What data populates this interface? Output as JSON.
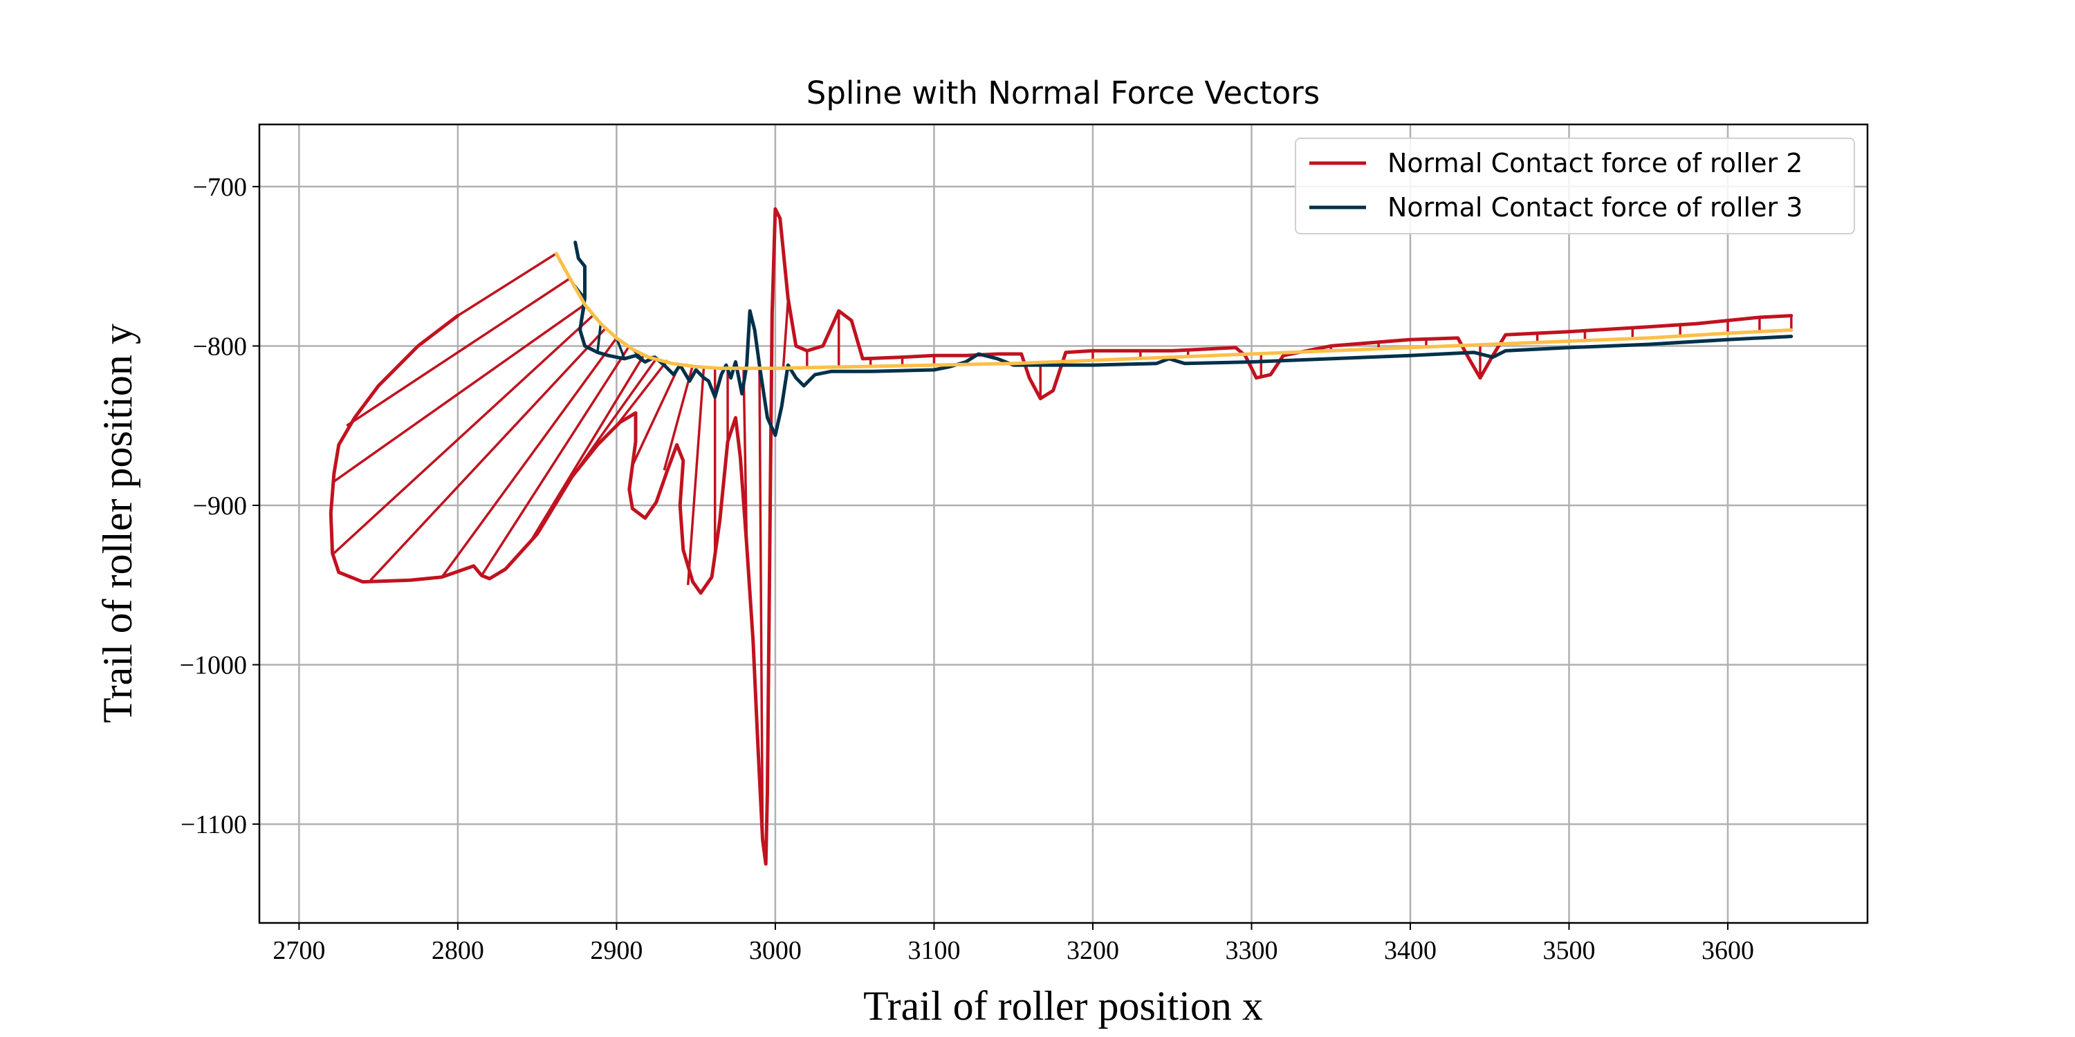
{
  "chart_data": {
    "type": "line",
    "title": "Spline with Normal Force Vectors",
    "xlabel": "Trail of roller position x",
    "ylabel": "Trail of roller position y",
    "xlim": [
      2675,
      3688
    ],
    "ylim": [
      -1162,
      -661
    ],
    "xticks": [
      2700,
      2800,
      2900,
      3000,
      3100,
      3200,
      3300,
      3400,
      3500,
      3600
    ],
    "yticks": [
      -700,
      -800,
      -900,
      -1000,
      -1100
    ],
    "grid": true,
    "legend": {
      "placement": "top-right"
    },
    "colors": {
      "roller2": "#c1121f",
      "roller3": "#003049",
      "spline": "#fcbf49"
    },
    "spline": {
      "name": "",
      "points": [
        [
          2862,
          -742
        ],
        [
          2872,
          -760
        ],
        [
          2880,
          -774
        ],
        [
          2890,
          -786
        ],
        [
          2900,
          -795
        ],
        [
          2910,
          -802
        ],
        [
          2920,
          -807
        ],
        [
          2935,
          -811
        ],
        [
          2950,
          -813
        ],
        [
          2965,
          -814
        ],
        [
          2980,
          -814
        ],
        [
          3000,
          -814
        ],
        [
          3050,
          -813
        ],
        [
          3100,
          -812
        ],
        [
          3150,
          -811
        ],
        [
          3200,
          -809
        ],
        [
          3250,
          -807
        ],
        [
          3300,
          -805
        ],
        [
          3350,
          -803
        ],
        [
          3400,
          -801
        ],
        [
          3450,
          -799
        ],
        [
          3500,
          -797
        ],
        [
          3550,
          -795
        ],
        [
          3600,
          -792
        ],
        [
          3640,
          -790
        ]
      ]
    },
    "series": [
      {
        "name": "Normal Contact force of roller 2",
        "color": "#c1121f",
        "points": [
          [
            2800,
            -781
          ],
          [
            2775,
            -800
          ],
          [
            2750,
            -825
          ],
          [
            2735,
            -845
          ],
          [
            2725,
            -862
          ],
          [
            2722,
            -880
          ],
          [
            2720,
            -905
          ],
          [
            2721,
            -930
          ],
          [
            2725,
            -942
          ],
          [
            2740,
            -948
          ],
          [
            2770,
            -947
          ],
          [
            2790,
            -945
          ],
          [
            2810,
            -938
          ],
          [
            2815,
            -944
          ],
          [
            2820,
            -946
          ],
          [
            2830,
            -940
          ],
          [
            2850,
            -918
          ],
          [
            2872,
            -882
          ],
          [
            2888,
            -862
          ],
          [
            2902,
            -848
          ],
          [
            2912,
            -842
          ],
          [
            2912,
            -860
          ],
          [
            2908,
            -890
          ],
          [
            2910,
            -902
          ],
          [
            2918,
            -908
          ],
          [
            2925,
            -898
          ],
          [
            2932,
            -878
          ],
          [
            2938,
            -862
          ],
          [
            2942,
            -872
          ],
          [
            2940,
            -900
          ],
          [
            2942,
            -928
          ],
          [
            2948,
            -948
          ],
          [
            2953,
            -955
          ],
          [
            2960,
            -945
          ],
          [
            2965,
            -910
          ],
          [
            2970,
            -860
          ],
          [
            2975,
            -845
          ],
          [
            2978,
            -870
          ],
          [
            2982,
            -925
          ],
          [
            2986,
            -985
          ],
          [
            2989,
            -1050
          ],
          [
            2992,
            -1110
          ],
          [
            2994,
            -1125
          ],
          [
            2995,
            -1080
          ],
          [
            2996,
            -980
          ],
          [
            2997,
            -880
          ],
          [
            2998,
            -780
          ],
          [
            3000,
            -714
          ],
          [
            3003,
            -720
          ],
          [
            3008,
            -770
          ],
          [
            3013,
            -800
          ],
          [
            3020,
            -803
          ],
          [
            3030,
            -800
          ],
          [
            3040,
            -778
          ],
          [
            3048,
            -784
          ],
          [
            3055,
            -808
          ],
          [
            3080,
            -807
          ],
          [
            3100,
            -806
          ],
          [
            3120,
            -806
          ],
          [
            3140,
            -805
          ],
          [
            3155,
            -805
          ],
          [
            3160,
            -820
          ],
          [
            3167,
            -833
          ],
          [
            3175,
            -828
          ],
          [
            3183,
            -804
          ],
          [
            3200,
            -803
          ],
          [
            3250,
            -803
          ],
          [
            3290,
            -801
          ],
          [
            3296,
            -806
          ],
          [
            3303,
            -820
          ],
          [
            3312,
            -818
          ],
          [
            3320,
            -806
          ],
          [
            3350,
            -800
          ],
          [
            3400,
            -796
          ],
          [
            3430,
            -795
          ],
          [
            3437,
            -808
          ],
          [
            3444,
            -820
          ],
          [
            3452,
            -806
          ],
          [
            3460,
            -793
          ],
          [
            3500,
            -791
          ],
          [
            3550,
            -788
          ],
          [
            3580,
            -786
          ],
          [
            3600,
            -784
          ],
          [
            3620,
            -782
          ],
          [
            3640,
            -781
          ]
        ],
        "vectors": [
          [
            [
              2862,
              -742
            ],
            [
              2800,
              -781
            ]
          ],
          [
            [
              2870,
              -758
            ],
            [
              2730,
              -850
            ]
          ],
          [
            [
              2880,
              -774
            ],
            [
              2722,
              -885
            ]
          ],
          [
            [
              2885,
              -781
            ],
            [
              2722,
              -930
            ]
          ],
          [
            [
              2893,
              -789
            ],
            [
              2745,
              -947
            ]
          ],
          [
            [
              2900,
              -795
            ],
            [
              2790,
              -945
            ]
          ],
          [
            [
              2908,
              -800
            ],
            [
              2815,
              -944
            ]
          ],
          [
            [
              2917,
              -806
            ],
            [
              2845,
              -924
            ]
          ],
          [
            [
              2925,
              -808
            ],
            [
              2872,
              -882
            ]
          ],
          [
            [
              2932,
              -809
            ],
            [
              2900,
              -850
            ]
          ],
          [
            [
              2940,
              -811
            ],
            [
              2910,
              -875
            ]
          ],
          [
            [
              2948,
              -812
            ],
            [
              2930,
              -878
            ]
          ],
          [
            [
              2955,
              -813
            ],
            [
              2945,
              -950
            ]
          ],
          [
            [
              2962,
              -813
            ],
            [
              2962,
              -930
            ]
          ],
          [
            [
              2970,
              -814
            ],
            [
              2970,
              -860
            ]
          ],
          [
            [
              2980,
              -814
            ],
            [
              2982,
              -925
            ]
          ],
          [
            [
              2990,
              -814
            ],
            [
              2992,
              -1110
            ]
          ],
          [
            [
              3005,
              -814
            ],
            [
              3008,
              -772
            ]
          ],
          [
            [
              3020,
              -814
            ],
            [
              3020,
              -803
            ]
          ],
          [
            [
              3040,
              -813
            ],
            [
              3040,
              -778
            ]
          ],
          [
            [
              3060,
              -813
            ],
            [
              3060,
              -807
            ]
          ],
          [
            [
              3080,
              -812
            ],
            [
              3080,
              -807
            ]
          ],
          [
            [
              3100,
              -812
            ],
            [
              3100,
              -806
            ]
          ],
          [
            [
              3167,
              -811
            ],
            [
              3167,
              -833
            ]
          ],
          [
            [
              3200,
              -809
            ],
            [
              3200,
              -803
            ]
          ],
          [
            [
              3230,
              -808
            ],
            [
              3230,
              -803
            ]
          ],
          [
            [
              3260,
              -807
            ],
            [
              3260,
              -802
            ]
          ],
          [
            [
              3306,
              -805
            ],
            [
              3306,
              -820
            ]
          ],
          [
            [
              3350,
              -803
            ],
            [
              3350,
              -800
            ]
          ],
          [
            [
              3380,
              -802
            ],
            [
              3380,
              -797
            ]
          ],
          [
            [
              3410,
              -800
            ],
            [
              3410,
              -796
            ]
          ],
          [
            [
              3444,
              -799
            ],
            [
              3444,
              -820
            ]
          ],
          [
            [
              3480,
              -798
            ],
            [
              3480,
              -792
            ]
          ],
          [
            [
              3510,
              -796
            ],
            [
              3510,
              -790
            ]
          ],
          [
            [
              3540,
              -795
            ],
            [
              3540,
              -788
            ]
          ],
          [
            [
              3570,
              -793
            ],
            [
              3570,
              -786
            ]
          ],
          [
            [
              3600,
              -792
            ],
            [
              3600,
              -784
            ]
          ],
          [
            [
              3620,
              -791
            ],
            [
              3620,
              -782
            ]
          ],
          [
            [
              3640,
              -790
            ],
            [
              3640,
              -781
            ]
          ]
        ]
      },
      {
        "name": "Normal Contact force of roller 3",
        "color": "#003049",
        "points": [
          [
            2874,
            -735
          ],
          [
            2876,
            -745
          ],
          [
            2880,
            -750
          ],
          [
            2880,
            -770
          ],
          [
            2877,
            -790
          ],
          [
            2880,
            -800
          ],
          [
            2888,
            -804
          ],
          [
            2895,
            -806
          ],
          [
            2905,
            -808
          ],
          [
            2912,
            -806
          ],
          [
            2918,
            -810
          ],
          [
            2924,
            -807
          ],
          [
            2930,
            -812
          ],
          [
            2936,
            -818
          ],
          [
            2940,
            -812
          ],
          [
            2946,
            -822
          ],
          [
            2950,
            -815
          ],
          [
            2955,
            -820
          ],
          [
            2958,
            -822
          ],
          [
            2962,
            -832
          ],
          [
            2966,
            -818
          ],
          [
            2969,
            -812
          ],
          [
            2972,
            -820
          ],
          [
            2975,
            -810
          ],
          [
            2979,
            -830
          ],
          [
            2982,
            -812
          ],
          [
            2984,
            -778
          ],
          [
            2987,
            -790
          ],
          [
            2990,
            -812
          ],
          [
            2995,
            -845
          ],
          [
            3000,
            -856
          ],
          [
            3004,
            -838
          ],
          [
            3008,
            -812
          ],
          [
            3013,
            -820
          ],
          [
            3018,
            -825
          ],
          [
            3025,
            -818
          ],
          [
            3035,
            -816
          ],
          [
            3060,
            -816
          ],
          [
            3100,
            -815
          ],
          [
            3110,
            -813
          ],
          [
            3120,
            -810
          ],
          [
            3128,
            -805
          ],
          [
            3140,
            -808
          ],
          [
            3150,
            -812
          ],
          [
            3200,
            -812
          ],
          [
            3240,
            -811
          ],
          [
            3248,
            -808
          ],
          [
            3258,
            -811
          ],
          [
            3300,
            -810
          ],
          [
            3350,
            -808
          ],
          [
            3400,
            -806
          ],
          [
            3440,
            -804
          ],
          [
            3452,
            -807
          ],
          [
            3460,
            -803
          ],
          [
            3500,
            -801
          ],
          [
            3550,
            -799
          ],
          [
            3600,
            -796
          ],
          [
            3640,
            -794
          ]
        ],
        "vectors": [
          [
            [
              2872,
              -760
            ],
            [
              2880,
              -770
            ]
          ],
          [
            [
              2880,
              -774
            ],
            [
              2877,
              -790
            ]
          ],
          [
            [
              2890,
              -786
            ],
            [
              2888,
              -804
            ]
          ],
          [
            [
              2900,
              -795
            ],
            [
              2905,
              -808
            ]
          ],
          [
            [
              2910,
              -802
            ],
            [
              2918,
              -810
            ]
          ],
          [
            [
              2920,
              -807
            ],
            [
              2924,
              -807
            ]
          ]
        ]
      }
    ]
  }
}
